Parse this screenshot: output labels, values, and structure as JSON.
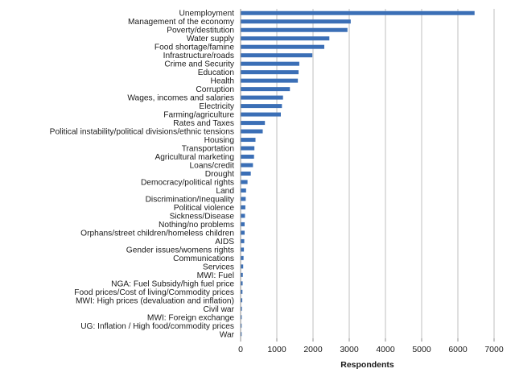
{
  "chart_data": {
    "type": "bar",
    "orientation": "horizontal",
    "title": "",
    "xlabel": "Respondents",
    "ylabel": "",
    "xlim": [
      0,
      7000
    ],
    "xticks": [
      0,
      1000,
      2000,
      3000,
      4000,
      5000,
      6000,
      7000
    ],
    "grid": "vertical",
    "legend": "none",
    "bar_color": "#3b6fb6",
    "categories": [
      "Unemployment",
      "Management of the economy",
      "Poverty/destitution",
      "Water supply",
      "Food shortage/famine",
      "Infrastructure/roads",
      "Crime and Security",
      "Education",
      "Health",
      "Corruption",
      "Wages, incomes and salaries",
      "Electricity",
      "Farming/agriculture",
      "Rates and Taxes",
      "Political instability/political divisions/ethnic tensions",
      "Housing",
      "Transportation",
      "Agricultural marketing",
      "Loans/credit",
      "Drought",
      "Democracy/political rights",
      "Land",
      "Discrimination/Inequality",
      "Political violence",
      "Sickness/Disease",
      "Nothing/no problems",
      "Orphans/street children/homeless children",
      "AIDS",
      "Gender issues/womens rights",
      "Communications",
      "Services",
      "MWI: Fuel",
      "NGA: Fuel Subsidy/high fuel price",
      "Food prices/Cost of living/Commodity prices",
      "MWI: High prices (devaluation and inflation)",
      "Civil war",
      "MWI: Foreign exchange",
      "UG: Inflation / High food/commodity prices",
      "War"
    ],
    "values": [
      6450,
      3030,
      2940,
      2440,
      2300,
      1970,
      1610,
      1590,
      1570,
      1350,
      1160,
      1130,
      1100,
      660,
      600,
      400,
      370,
      360,
      330,
      270,
      180,
      140,
      130,
      120,
      110,
      100,
      100,
      90,
      80,
      70,
      60,
      50,
      45,
      40,
      35,
      25,
      20,
      15,
      10
    ]
  }
}
